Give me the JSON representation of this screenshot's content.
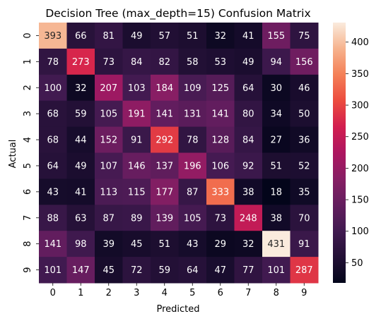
{
  "chart_data": {
    "type": "heatmap",
    "title": "Decision Tree (max_depth=15) Confusion Matrix",
    "xlabel": "Predicted",
    "ylabel": "Actual",
    "x_categories": [
      "0",
      "1",
      "2",
      "3",
      "4",
      "5",
      "6",
      "7",
      "8",
      "9"
    ],
    "y_categories": [
      "0",
      "1",
      "2",
      "3",
      "4",
      "5",
      "6",
      "7",
      "8",
      "9"
    ],
    "values": [
      [
        393,
        66,
        81,
        49,
        57,
        51,
        32,
        41,
        155,
        75
      ],
      [
        78,
        273,
        73,
        84,
        82,
        58,
        53,
        49,
        94,
        156
      ],
      [
        100,
        32,
        207,
        103,
        184,
        109,
        125,
        64,
        30,
        46
      ],
      [
        68,
        59,
        105,
        191,
        141,
        131,
        141,
        80,
        34,
        50
      ],
      [
        68,
        44,
        152,
        91,
        292,
        78,
        128,
        84,
        27,
        36
      ],
      [
        64,
        49,
        107,
        146,
        137,
        196,
        106,
        92,
        51,
        52
      ],
      [
        43,
        41,
        113,
        115,
        177,
        87,
        333,
        38,
        18,
        35
      ],
      [
        88,
        63,
        87,
        89,
        139,
        105,
        73,
        248,
        38,
        70
      ],
      [
        141,
        98,
        39,
        45,
        51,
        43,
        29,
        32,
        431,
        91
      ],
      [
        101,
        147,
        45,
        72,
        59,
        64,
        47,
        77,
        101,
        287
      ]
    ],
    "colormap": "rocket",
    "vmin": 18,
    "vmax": 431,
    "colorbar_ticks": [
      "50",
      "100",
      "150",
      "200",
      "250",
      "300",
      "350",
      "400"
    ],
    "colorbar_tick_values": [
      50,
      100,
      150,
      200,
      250,
      300,
      350,
      400
    ],
    "annotations": true
  }
}
